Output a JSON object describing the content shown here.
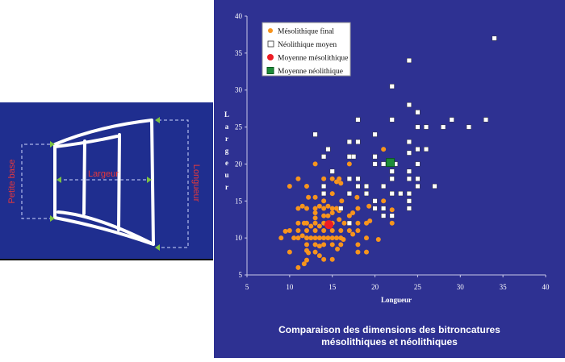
{
  "diagram": {
    "labels": {
      "petite_base": "Petite base",
      "largeur": "Largeur",
      "longueur": "Longueur"
    },
    "colors": {
      "label": "#e8383a",
      "arrow": "#7cc242",
      "outline": "#ffffff"
    }
  },
  "chart_data": {
    "type": "scatter",
    "title": "Comparaison des dimensions des bitroncatures mésolithiques et néolithiques",
    "title_lines": [
      "Comparaison des dimensions des bitroncatures",
      "mésolithiques et néolithiques"
    ],
    "xlabel": "Longueur",
    "ylabel": "Largeur",
    "xlim": [
      5,
      40
    ],
    "ylim": [
      5,
      40
    ],
    "xticks": [
      5,
      10,
      15,
      20,
      25,
      30,
      35,
      40
    ],
    "yticks": [
      5,
      10,
      15,
      20,
      25,
      30,
      35,
      40
    ],
    "grid": false,
    "legend_position": "top-left",
    "series": [
      {
        "name": "Mésolithique final",
        "marker": "circle",
        "color": "#f7941d",
        "points": [
          [
            17,
            20
          ],
          [
            13,
            20
          ],
          [
            21,
            22
          ],
          [
            11,
            18
          ],
          [
            14,
            18
          ],
          [
            15,
            18
          ],
          [
            15.8,
            18
          ],
          [
            15.5,
            17.6
          ],
          [
            16,
            17.4
          ],
          [
            10,
            17
          ],
          [
            12,
            17
          ],
          [
            12.2,
            15.5
          ],
          [
            13,
            15.5
          ],
          [
            14,
            15
          ],
          [
            15,
            16
          ],
          [
            16.1,
            15
          ],
          [
            17.9,
            15.5
          ],
          [
            21,
            15
          ],
          [
            11,
            14
          ],
          [
            11.5,
            14.3
          ],
          [
            12,
            14
          ],
          [
            13,
            14
          ],
          [
            13.5,
            14.3
          ],
          [
            14,
            14
          ],
          [
            14.5,
            14.3
          ],
          [
            15,
            14
          ],
          [
            15.5,
            14
          ],
          [
            15.8,
            13.7
          ],
          [
            17,
            13
          ],
          [
            17.4,
            13.4
          ],
          [
            18,
            14
          ],
          [
            19.3,
            14.3
          ],
          [
            22,
            13.8
          ],
          [
            13,
            13.4
          ],
          [
            13,
            12.7
          ],
          [
            14,
            13
          ],
          [
            14.5,
            13
          ],
          [
            15,
            13.4
          ],
          [
            15.8,
            12.5
          ],
          [
            16.4,
            12
          ],
          [
            11,
            12
          ],
          [
            11.7,
            12
          ],
          [
            12,
            12
          ],
          [
            12.5,
            11.6
          ],
          [
            13,
            12
          ],
          [
            13.5,
            11.6
          ],
          [
            14,
            12
          ],
          [
            15,
            12
          ],
          [
            18,
            12
          ],
          [
            19,
            12
          ],
          [
            19.4,
            12.3
          ],
          [
            22,
            12
          ],
          [
            9.5,
            10.9
          ],
          [
            10,
            11
          ],
          [
            11,
            11
          ],
          [
            12,
            11
          ],
          [
            13,
            11
          ],
          [
            14,
            11
          ],
          [
            15,
            11
          ],
          [
            16,
            11
          ],
          [
            17,
            11
          ],
          [
            18,
            11
          ],
          [
            17.4,
            10.5
          ],
          [
            9,
            10
          ],
          [
            10.5,
            10
          ],
          [
            11,
            10
          ],
          [
            11.5,
            10.3
          ],
          [
            12,
            10
          ],
          [
            12.5,
            10
          ],
          [
            13,
            10
          ],
          [
            13.5,
            10
          ],
          [
            14,
            10
          ],
          [
            14.5,
            10
          ],
          [
            15,
            10
          ],
          [
            15.5,
            10
          ],
          [
            16,
            10
          ],
          [
            16.3,
            9.8
          ],
          [
            19,
            10
          ],
          [
            20.4,
            9.8
          ],
          [
            12,
            9.1
          ],
          [
            13,
            9.1
          ],
          [
            13.5,
            8.9
          ],
          [
            14,
            9.1
          ],
          [
            15,
            9.1
          ],
          [
            16,
            9.1
          ],
          [
            18,
            9.1
          ],
          [
            10,
            8.1
          ],
          [
            12,
            8.3
          ],
          [
            12.2,
            8
          ],
          [
            13,
            8.1
          ],
          [
            13.5,
            7.6
          ],
          [
            14,
            7.1
          ],
          [
            15,
            7.1
          ],
          [
            15.6,
            8.5
          ],
          [
            18,
            8.1
          ],
          [
            19,
            8.1
          ],
          [
            12,
            7
          ],
          [
            11.7,
            6.5
          ],
          [
            11,
            6
          ]
        ]
      },
      {
        "name": "Néolithique moyen",
        "marker": "square",
        "color": "#ffffff",
        "points": [
          [
            34,
            37
          ],
          [
            24,
            34
          ],
          [
            22,
            30.5
          ],
          [
            24,
            28
          ],
          [
            25,
            27
          ],
          [
            18,
            26
          ],
          [
            22,
            26
          ],
          [
            29,
            26
          ],
          [
            33,
            26
          ],
          [
            25,
            25
          ],
          [
            26,
            25
          ],
          [
            28,
            25
          ],
          [
            31,
            25
          ],
          [
            13,
            24
          ],
          [
            20,
            24
          ],
          [
            24,
            23
          ],
          [
            17,
            23
          ],
          [
            18,
            23
          ],
          [
            14.5,
            22
          ],
          [
            24,
            21.5
          ],
          [
            25,
            22
          ],
          [
            26,
            22
          ],
          [
            14,
            21
          ],
          [
            17,
            21
          ],
          [
            17.5,
            21
          ],
          [
            20,
            21
          ],
          [
            20,
            20
          ],
          [
            21,
            20
          ],
          [
            22.4,
            20
          ],
          [
            25,
            20
          ],
          [
            15,
            19
          ],
          [
            22,
            19
          ],
          [
            24,
            19
          ],
          [
            17,
            18
          ],
          [
            18,
            18
          ],
          [
            22,
            18
          ],
          [
            24,
            18
          ],
          [
            25,
            18
          ],
          [
            14,
            17
          ],
          [
            18,
            17
          ],
          [
            19,
            17
          ],
          [
            21,
            17
          ],
          [
            25,
            17
          ],
          [
            27,
            17
          ],
          [
            14,
            16
          ],
          [
            17,
            16
          ],
          [
            19,
            16
          ],
          [
            22,
            16
          ],
          [
            23,
            16
          ],
          [
            24,
            16
          ],
          [
            20,
            15
          ],
          [
            24,
            15
          ],
          [
            16,
            14
          ],
          [
            20,
            14
          ],
          [
            21,
            14
          ],
          [
            24,
            14
          ],
          [
            21,
            13
          ],
          [
            22,
            13
          ],
          [
            17,
            12
          ]
        ]
      },
      {
        "name": "Moyenne mésolithique",
        "marker": "circle",
        "color": "#ed1c24",
        "points": [
          [
            14.6,
            11.8
          ]
        ]
      },
      {
        "name": "Moyenne néolithique",
        "marker": "square",
        "color": "#1e8c3a",
        "points": [
          [
            21.8,
            20.2
          ]
        ]
      }
    ]
  }
}
